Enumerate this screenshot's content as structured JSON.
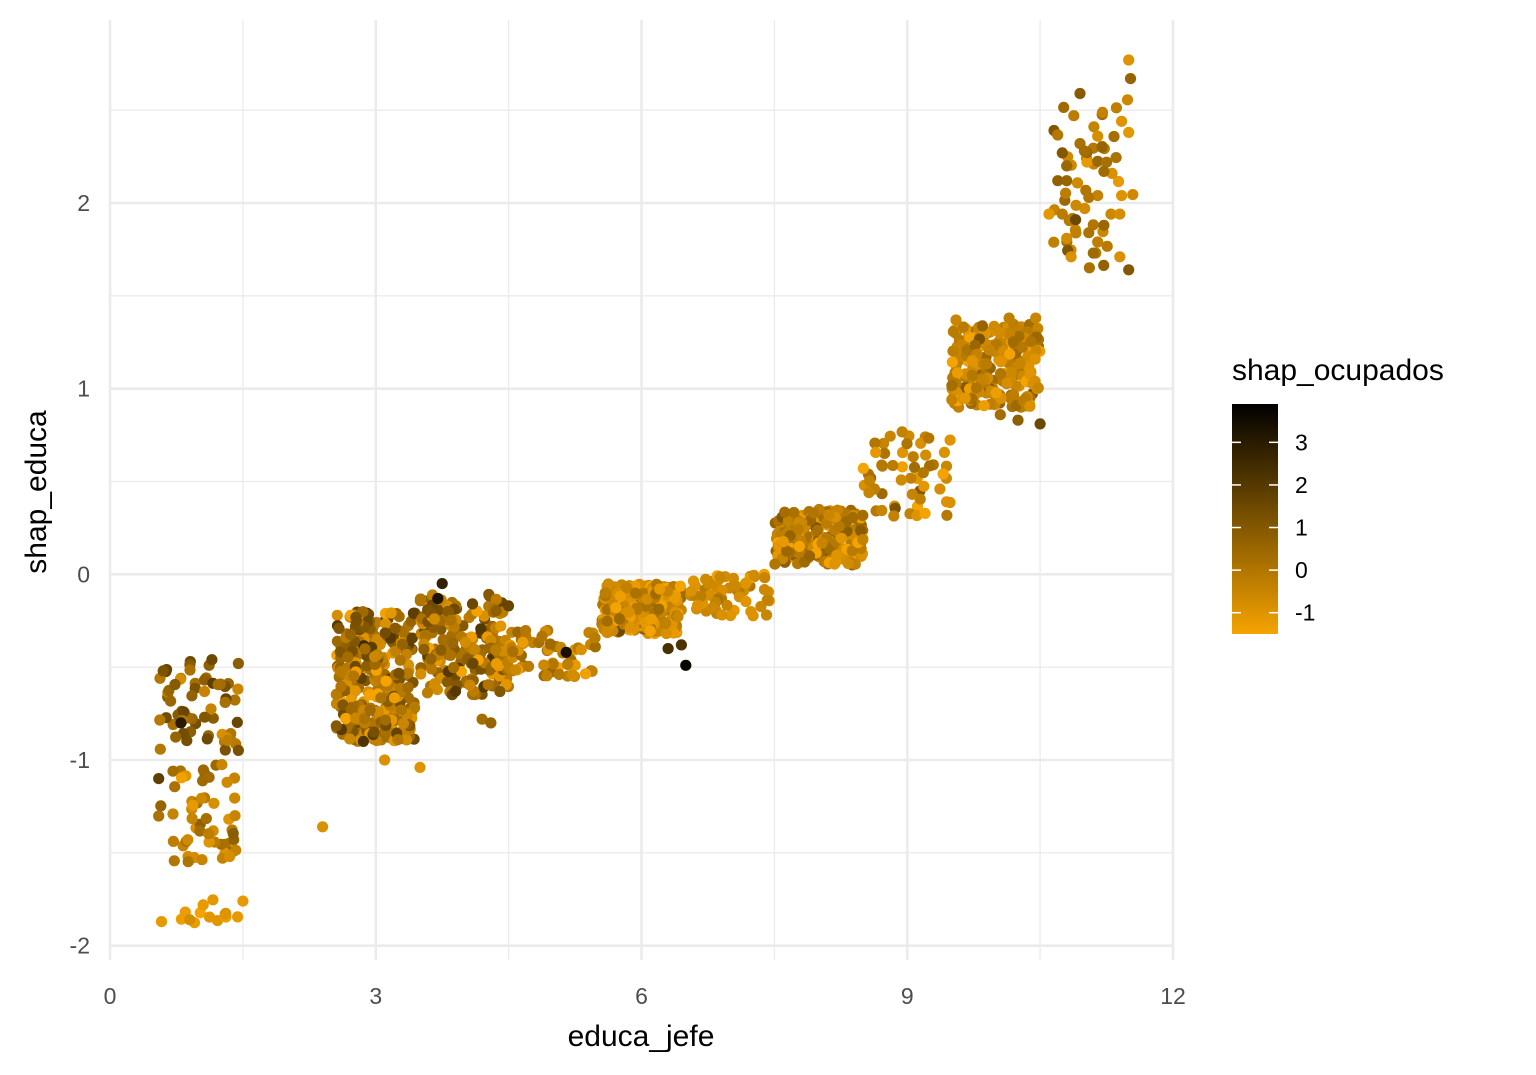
{
  "chart_data": {
    "type": "scatter",
    "title": "",
    "xlabel": "educa_jefe",
    "ylabel": "shap_educa",
    "xlim": [
      0,
      12
    ],
    "ylim": [
      -2,
      2.9
    ],
    "x_ticks": [
      0,
      3,
      6,
      9,
      12
    ],
    "x_tick_labels": [
      "0",
      "3",
      "6",
      "9",
      "12"
    ],
    "y_ticks": [
      -2,
      -1,
      0,
      1,
      2
    ],
    "y_tick_labels": [
      "-2",
      "-1",
      "0",
      "1",
      "2"
    ],
    "grid": true,
    "legend": {
      "title": "shap_ocupados",
      "placement": "right",
      "type": "colorbar",
      "range": [
        -1.5,
        3.9
      ],
      "ticks": [
        -1,
        0,
        1,
        2,
        3
      ],
      "tick_labels": [
        "-1",
        "0",
        "1",
        "2",
        "3"
      ],
      "color_low": "#f5a300",
      "color_high": "#000000"
    },
    "clusters": [
      {
        "x_center": 1.0,
        "x_jitter": 0.45,
        "y_min": -0.95,
        "y_max": -0.45,
        "n": 60,
        "c_mean": 0.5,
        "c_sd": 0.8
      },
      {
        "x_center": 1.0,
        "x_jitter": 0.45,
        "y_min": -1.55,
        "y_max": -1.0,
        "n": 55,
        "c_mean": -0.2,
        "c_sd": 0.7
      },
      {
        "x_center": 1.0,
        "x_jitter": 0.45,
        "y_min": -1.88,
        "y_max": -1.75,
        "n": 12,
        "c_mean": -1.2,
        "c_sd": 0.2
      },
      {
        "x_center": 3.0,
        "x_jitter": 0.45,
        "y_min": -0.9,
        "y_max": -0.2,
        "n": 320,
        "c_mean": 0.2,
        "c_sd": 0.9
      },
      {
        "x_center": 4.0,
        "x_jitter": 0.5,
        "y_min": -0.65,
        "y_max": -0.1,
        "n": 200,
        "c_mean": 0.2,
        "c_sd": 0.9
      },
      {
        "x_center": 5.0,
        "x_jitter": 0.5,
        "y_min": -0.55,
        "y_max": -0.3,
        "n": 60,
        "c_mean": -0.5,
        "c_sd": 0.6
      },
      {
        "x_center": 6.0,
        "x_jitter": 0.45,
        "y_min": -0.32,
        "y_max": -0.05,
        "n": 260,
        "c_mean": -0.6,
        "c_sd": 0.6
      },
      {
        "x_center": 7.0,
        "x_jitter": 0.45,
        "y_min": -0.23,
        "y_max": 0.0,
        "n": 60,
        "c_mean": -0.7,
        "c_sd": 0.4
      },
      {
        "x_center": 8.0,
        "x_jitter": 0.5,
        "y_min": 0.05,
        "y_max": 0.35,
        "n": 220,
        "c_mean": -0.3,
        "c_sd": 0.7
      },
      {
        "x_center": 9.0,
        "x_jitter": 0.5,
        "y_min": 0.3,
        "y_max": 0.8,
        "n": 55,
        "c_mean": -0.4,
        "c_sd": 0.6
      },
      {
        "x_center": 10.0,
        "x_jitter": 0.5,
        "y_min": 0.9,
        "y_max": 1.35,
        "n": 230,
        "c_mean": -0.4,
        "c_sd": 0.6
      },
      {
        "x_center": 11.1,
        "x_jitter": 0.45,
        "y_min": 1.65,
        "y_max": 2.6,
        "n": 45,
        "c_mean": -0.4,
        "c_sd": 0.6
      }
    ],
    "points": [
      {
        "x": 2.4,
        "y": -1.36,
        "c": -0.9
      },
      {
        "x": 3.1,
        "y": -1.0,
        "c": -0.9
      },
      {
        "x": 3.5,
        "y": -1.04,
        "c": -1.0
      },
      {
        "x": 0.8,
        "y": -0.8,
        "c": 3.0
      },
      {
        "x": 3.7,
        "y": -0.13,
        "c": 3.2
      },
      {
        "x": 3.75,
        "y": -0.05,
        "c": 2.8
      },
      {
        "x": 5.15,
        "y": -0.42,
        "c": 3.4
      },
      {
        "x": 6.5,
        "y": -0.49,
        "c": 3.7
      },
      {
        "x": 6.45,
        "y": -0.38,
        "c": 2.2
      },
      {
        "x": 6.3,
        "y": -0.4,
        "c": 2.3
      },
      {
        "x": 3.9,
        "y": -0.63,
        "c": 2.0
      },
      {
        "x": 4.2,
        "y": -0.78,
        "c": 0.3
      },
      {
        "x": 4.3,
        "y": -0.8,
        "c": 0.6
      },
      {
        "x": 0.6,
        "y": -0.52,
        "c": 1.2
      },
      {
        "x": 1.15,
        "y": -0.46,
        "c": 1.5
      },
      {
        "x": 1.45,
        "y": -0.48,
        "c": 0.8
      },
      {
        "x": 0.55,
        "y": -1.1,
        "c": 1.8
      },
      {
        "x": 1.35,
        "y": -1.52,
        "c": -0.8
      },
      {
        "x": 1.3,
        "y": -1.83,
        "c": -1.0
      },
      {
        "x": 1.5,
        "y": -1.76,
        "c": -1.2
      },
      {
        "x": 0.9,
        "y": -1.86,
        "c": -0.8
      },
      {
        "x": 9.55,
        "y": 1.37,
        "c": -0.5
      },
      {
        "x": 10.15,
        "y": 1.38,
        "c": -0.3
      },
      {
        "x": 10.45,
        "y": 1.38,
        "c": -0.5
      },
      {
        "x": 10.5,
        "y": 0.81,
        "c": 1.5
      },
      {
        "x": 10.25,
        "y": 0.83,
        "c": 0.8
      },
      {
        "x": 10.05,
        "y": 0.86,
        "c": 0.3
      },
      {
        "x": 11.5,
        "y": 2.77,
        "c": -1.0
      },
      {
        "x": 11.52,
        "y": 2.67,
        "c": 0.6
      },
      {
        "x": 10.95,
        "y": 2.59,
        "c": 0.9
      },
      {
        "x": 11.42,
        "y": 2.44,
        "c": -1.0
      },
      {
        "x": 11.5,
        "y": 2.38,
        "c": -1.1
      },
      {
        "x": 11.15,
        "y": 2.36,
        "c": -0.8
      },
      {
        "x": 11.2,
        "y": 2.3,
        "c": 0.6
      },
      {
        "x": 10.95,
        "y": 2.32,
        "c": 0.2
      },
      {
        "x": 11.0,
        "y": 2.28,
        "c": 0.3
      },
      {
        "x": 11.25,
        "y": 2.22,
        "c": 0.2
      },
      {
        "x": 10.75,
        "y": 2.27,
        "c": 1.0
      },
      {
        "x": 10.8,
        "y": 2.2,
        "c": 0.5
      },
      {
        "x": 11.22,
        "y": 2.17,
        "c": 0.4
      },
      {
        "x": 10.7,
        "y": 2.12,
        "c": 0.7
      },
      {
        "x": 10.8,
        "y": 2.12,
        "c": 0.6
      },
      {
        "x": 11.42,
        "y": 2.04,
        "c": -1.0
      },
      {
        "x": 11.15,
        "y": 2.04,
        "c": -0.4
      },
      {
        "x": 11.05,
        "y": 2.03,
        "c": 0.0
      },
      {
        "x": 10.6,
        "y": 1.94,
        "c": -1.1
      },
      {
        "x": 10.75,
        "y": 1.94,
        "c": -0.2
      },
      {
        "x": 11.3,
        "y": 1.94,
        "c": -0.6
      },
      {
        "x": 11.4,
        "y": 1.94,
        "c": -0.8
      },
      {
        "x": 10.9,
        "y": 1.91,
        "c": 1.5
      },
      {
        "x": 11.22,
        "y": 1.88,
        "c": 0.5
      },
      {
        "x": 11.05,
        "y": 1.84,
        "c": 0.1
      },
      {
        "x": 10.8,
        "y": 1.81,
        "c": -0.7
      },
      {
        "x": 11.15,
        "y": 1.79,
        "c": -0.3
      },
      {
        "x": 11.1,
        "y": 1.73,
        "c": 0.4
      },
      {
        "x": 10.85,
        "y": 1.71,
        "c": -0.9
      },
      {
        "x": 11.4,
        "y": 1.71,
        "c": -0.9
      },
      {
        "x": 11.5,
        "y": 1.64,
        "c": 1.0
      }
    ]
  }
}
